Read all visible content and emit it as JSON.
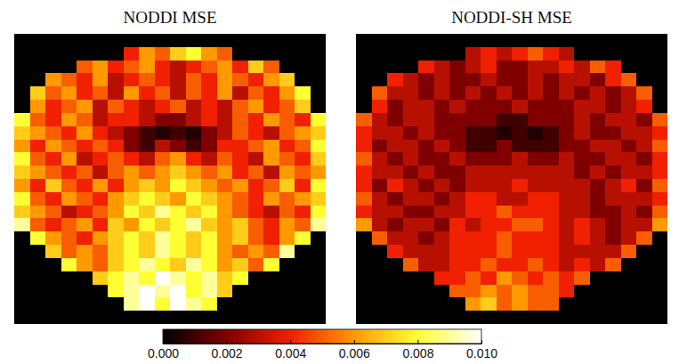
{
  "chart_data": [
    {
      "type": "heatmap",
      "title": "NODDI MSE",
      "tick_labels": false,
      "colorbar": {
        "range": [
          0,
          0.01
        ],
        "ticks": [
          {
            "value": 0,
            "label": "0.000"
          },
          {
            "value": 0.002,
            "label": "0.002"
          },
          {
            "value": 0.004,
            "label": "0.004"
          },
          {
            "value": 0.006,
            "label": "0.006"
          },
          {
            "value": 0.008,
            "label": "0.008"
          },
          {
            "value": 0.01,
            "label": "0.010"
          }
        ]
      },
      "cells": [
        [
          0,
          0,
          0,
          0,
          0,
          0,
          0,
          0,
          0,
          0,
          0,
          0,
          0,
          0,
          0,
          0,
          0,
          0,
          0,
          0
        ],
        [
          0,
          0,
          0,
          0,
          0,
          0,
          0,
          0.004,
          0.006,
          0.005,
          0.007,
          0.008,
          0.006,
          0.005,
          0,
          0,
          0,
          0,
          0,
          0
        ],
        [
          0,
          0,
          0,
          0,
          0.005,
          0.006,
          0.004,
          0.005,
          0.006,
          0.004,
          0.003,
          0.004,
          0.005,
          0.006,
          0.004,
          0.007,
          0.005,
          0,
          0,
          0
        ],
        [
          0,
          0,
          0.006,
          0.005,
          0.004,
          0.006,
          0.003,
          0.004,
          0.005,
          0.004,
          0.003,
          0.005,
          0.004,
          0.006,
          0.005,
          0.004,
          0.006,
          0.007,
          0,
          0
        ],
        [
          0,
          0.007,
          0.005,
          0.006,
          0.004,
          0.005,
          0.003,
          0.006,
          0.004,
          0.005,
          0.003,
          0.005,
          0.004,
          0.006,
          0.003,
          0.005,
          0.004,
          0.006,
          0.008,
          0
        ],
        [
          0,
          0.006,
          0.004,
          0.005,
          0.006,
          0.003,
          0.005,
          0.004,
          0.003,
          0.004,
          0.005,
          0.003,
          0.004,
          0.003,
          0.005,
          0.006,
          0.004,
          0.005,
          0.007,
          0
        ],
        [
          0.008,
          0.005,
          0.004,
          0.006,
          0.005,
          0.003,
          0.004,
          0.004,
          0.003,
          0.002,
          0.002,
          0.003,
          0.004,
          0.003,
          0.005,
          0.004,
          0.006,
          0.005,
          0.004,
          0.008
        ],
        [
          0.007,
          0.006,
          0.005,
          0.004,
          0.006,
          0.004,
          0.003,
          0.002,
          0.001,
          0.0005,
          0.001,
          0.0005,
          0.002,
          0.003,
          0.005,
          0.004,
          0.003,
          0.005,
          0.006,
          0.007
        ],
        [
          0.006,
          0.004,
          0.006,
          0.005,
          0.004,
          0.005,
          0.004,
          0.002,
          0.001,
          0.003,
          0.002,
          0.001,
          0.002,
          0.004,
          0.004,
          0.005,
          0.006,
          0.004,
          0.005,
          0.008
        ],
        [
          0.008,
          0.005,
          0.004,
          0.006,
          0.003,
          0.004,
          0.005,
          0.004,
          0.003,
          0.005,
          0.006,
          0.004,
          0.003,
          0.005,
          0.004,
          0.003,
          0.006,
          0.005,
          0.004,
          0.007
        ],
        [
          0.007,
          0.006,
          0.005,
          0.004,
          0.005,
          0.003,
          0.005,
          0.006,
          0.005,
          0.006,
          0.007,
          0.006,
          0.005,
          0.006,
          0.004,
          0.005,
          0.003,
          0.006,
          0.005,
          0.006
        ],
        [
          0.006,
          0.004,
          0.007,
          0.005,
          0.004,
          0.006,
          0.004,
          0.006,
          0.007,
          0.006,
          0.008,
          0.007,
          0.006,
          0.005,
          0.006,
          0.004,
          0.005,
          0.007,
          0.004,
          0.008
        ],
        [
          0.008,
          0.005,
          0.004,
          0.006,
          0.005,
          0.004,
          0.006,
          0.007,
          0.008,
          0.007,
          0.006,
          0.008,
          0.007,
          0.006,
          0.005,
          0.004,
          0.006,
          0.005,
          0.006,
          0.007
        ],
        [
          0.007,
          0.006,
          0.005,
          0.003,
          0.004,
          0.005,
          0.006,
          0.008,
          0.007,
          0.009,
          0.008,
          0.007,
          0.008,
          0.006,
          0.005,
          0.004,
          0.003,
          0.005,
          0.004,
          0.008
        ],
        [
          0.009,
          0.005,
          0.004,
          0.005,
          0.006,
          0.004,
          0.007,
          0.006,
          0.008,
          0.007,
          0.008,
          0.009,
          0.007,
          0.006,
          0.007,
          0.005,
          0.004,
          0.006,
          0.005,
          0.009
        ],
        [
          0,
          0.008,
          0.006,
          0.005,
          0.004,
          0.006,
          0.007,
          0.008,
          0.007,
          0.009,
          0.008,
          0.007,
          0.008,
          0.006,
          0.007,
          0.005,
          0.004,
          0.006,
          0.008,
          0
        ],
        [
          0,
          0,
          0.007,
          0.005,
          0.006,
          0.005,
          0.007,
          0.008,
          0.007,
          0.009,
          0.008,
          0.007,
          0.008,
          0.006,
          0.005,
          0.006,
          0.005,
          0.009,
          0,
          0
        ],
        [
          0,
          0,
          0,
          0.008,
          0.006,
          0.005,
          0.007,
          0.008,
          0.009,
          0.008,
          0.007,
          0.009,
          0.008,
          0.006,
          0.007,
          0.005,
          0.008,
          0,
          0,
          0
        ],
        [
          0,
          0,
          0,
          0,
          0,
          0.007,
          0.008,
          0.009,
          0.008,
          0.01,
          0.009,
          0.008,
          0.009,
          0.007,
          0.008,
          0,
          0,
          0,
          0,
          0
        ],
        [
          0,
          0,
          0,
          0,
          0,
          0,
          0.008,
          0.009,
          0.01,
          0.009,
          0.01,
          0.008,
          0.009,
          0.007,
          0,
          0,
          0,
          0,
          0,
          0
        ],
        [
          0,
          0,
          0,
          0,
          0,
          0,
          0,
          0.009,
          0.01,
          0.008,
          0.01,
          0.009,
          0.008,
          0,
          0,
          0,
          0,
          0,
          0,
          0
        ],
        [
          0,
          0,
          0,
          0,
          0,
          0,
          0,
          0,
          0,
          0,
          0,
          0,
          0,
          0,
          0,
          0,
          0,
          0,
          0,
          0
        ]
      ]
    },
    {
      "type": "heatmap",
      "title": "NODDI-SH MSE",
      "tick_labels": false,
      "cells": [
        [
          0,
          0,
          0,
          0,
          0,
          0,
          0,
          0,
          0,
          0,
          0,
          0,
          0,
          0,
          0,
          0,
          0,
          0,
          0,
          0
        ],
        [
          0,
          0,
          0,
          0,
          0,
          0,
          0,
          0.003,
          0.004,
          0.003,
          0.004,
          0.005,
          0.004,
          0.003,
          0,
          0,
          0,
          0,
          0,
          0
        ],
        [
          0,
          0,
          0,
          0,
          0.004,
          0.003,
          0.002,
          0.003,
          0.004,
          0.002,
          0.002,
          0.003,
          0.003,
          0.004,
          0.003,
          0.005,
          0.004,
          0,
          0,
          0
        ],
        [
          0,
          0,
          0.004,
          0.003,
          0.002,
          0.003,
          0.002,
          0.002,
          0.003,
          0.002,
          0.002,
          0.003,
          0.002,
          0.003,
          0.003,
          0.002,
          0.004,
          0.005,
          0,
          0
        ],
        [
          0,
          0.005,
          0.003,
          0.003,
          0.002,
          0.003,
          0.002,
          0.003,
          0.002,
          0.003,
          0.002,
          0.003,
          0.002,
          0.003,
          0.002,
          0.003,
          0.002,
          0.003,
          0.005,
          0
        ],
        [
          0,
          0.004,
          0.002,
          0.003,
          0.003,
          0.002,
          0.003,
          0.002,
          0.002,
          0.002,
          0.003,
          0.002,
          0.002,
          0.002,
          0.003,
          0.003,
          0.002,
          0.003,
          0.004,
          0
        ],
        [
          0.005,
          0.003,
          0.002,
          0.003,
          0.003,
          0.002,
          0.002,
          0.002,
          0.002,
          0.001,
          0.001,
          0.002,
          0.002,
          0.002,
          0.003,
          0.002,
          0.003,
          0.003,
          0.002,
          0.005
        ],
        [
          0.004,
          0.003,
          0.003,
          0.002,
          0.003,
          0.002,
          0.002,
          0.001,
          0.001,
          0.0005,
          0.001,
          0.0005,
          0.001,
          0.002,
          0.003,
          0.002,
          0.002,
          0.003,
          0.003,
          0.004
        ],
        [
          0.004,
          0.002,
          0.003,
          0.003,
          0.002,
          0.003,
          0.002,
          0.001,
          0.001,
          0.002,
          0.001,
          0.001,
          0.001,
          0.002,
          0.002,
          0.003,
          0.003,
          0.002,
          0.003,
          0.005
        ],
        [
          0.005,
          0.003,
          0.002,
          0.003,
          0.002,
          0.002,
          0.003,
          0.002,
          0.002,
          0.002,
          0.003,
          0.002,
          0.002,
          0.003,
          0.002,
          0.002,
          0.003,
          0.003,
          0.002,
          0.004
        ],
        [
          0.004,
          0.003,
          0.003,
          0.002,
          0.003,
          0.002,
          0.002,
          0.003,
          0.003,
          0.003,
          0.003,
          0.003,
          0.003,
          0.003,
          0.002,
          0.003,
          0.002,
          0.003,
          0.003,
          0.004
        ],
        [
          0.004,
          0.002,
          0.004,
          0.003,
          0.002,
          0.003,
          0.002,
          0.003,
          0.003,
          0.003,
          0.004,
          0.003,
          0.003,
          0.003,
          0.003,
          0.002,
          0.003,
          0.004,
          0.002,
          0.005
        ],
        [
          0.005,
          0.003,
          0.002,
          0.003,
          0.003,
          0.002,
          0.003,
          0.004,
          0.004,
          0.003,
          0.003,
          0.004,
          0.004,
          0.003,
          0.003,
          0.002,
          0.003,
          0.003,
          0.003,
          0.004
        ],
        [
          0.004,
          0.003,
          0.003,
          0.002,
          0.002,
          0.003,
          0.003,
          0.004,
          0.004,
          0.005,
          0.004,
          0.004,
          0.004,
          0.003,
          0.003,
          0.002,
          0.002,
          0.003,
          0.002,
          0.005
        ],
        [
          0.006,
          0.003,
          0.002,
          0.003,
          0.003,
          0.002,
          0.004,
          0.003,
          0.004,
          0.004,
          0.005,
          0.005,
          0.004,
          0.003,
          0.004,
          0.003,
          0.002,
          0.003,
          0.003,
          0.006
        ],
        [
          0,
          0.005,
          0.003,
          0.003,
          0.002,
          0.003,
          0.004,
          0.004,
          0.004,
          0.005,
          0.004,
          0.004,
          0.004,
          0.003,
          0.004,
          0.003,
          0.002,
          0.003,
          0.005,
          0
        ],
        [
          0,
          0,
          0.004,
          0.003,
          0.003,
          0.003,
          0.004,
          0.004,
          0.004,
          0.005,
          0.004,
          0.004,
          0.004,
          0.003,
          0.003,
          0.003,
          0.003,
          0.005,
          0,
          0
        ],
        [
          0,
          0,
          0,
          0.005,
          0.003,
          0.003,
          0.004,
          0.004,
          0.005,
          0.004,
          0.004,
          0.005,
          0.004,
          0.003,
          0.004,
          0.003,
          0.005,
          0,
          0,
          0
        ],
        [
          0,
          0,
          0,
          0,
          0,
          0.004,
          0.004,
          0.005,
          0.004,
          0.006,
          0.005,
          0.004,
          0.005,
          0.004,
          0.005,
          0,
          0,
          0,
          0,
          0
        ],
        [
          0,
          0,
          0,
          0,
          0,
          0,
          0.005,
          0.005,
          0.006,
          0.005,
          0.006,
          0.005,
          0.005,
          0.004,
          0,
          0,
          0,
          0,
          0,
          0
        ],
        [
          0,
          0,
          0,
          0,
          0,
          0,
          0,
          0.006,
          0.007,
          0.005,
          0.006,
          0.005,
          0.005,
          0,
          0,
          0,
          0,
          0,
          0,
          0
        ],
        [
          0,
          0,
          0,
          0,
          0,
          0,
          0,
          0,
          0,
          0,
          0,
          0,
          0,
          0,
          0,
          0,
          0,
          0,
          0,
          0
        ]
      ]
    }
  ]
}
